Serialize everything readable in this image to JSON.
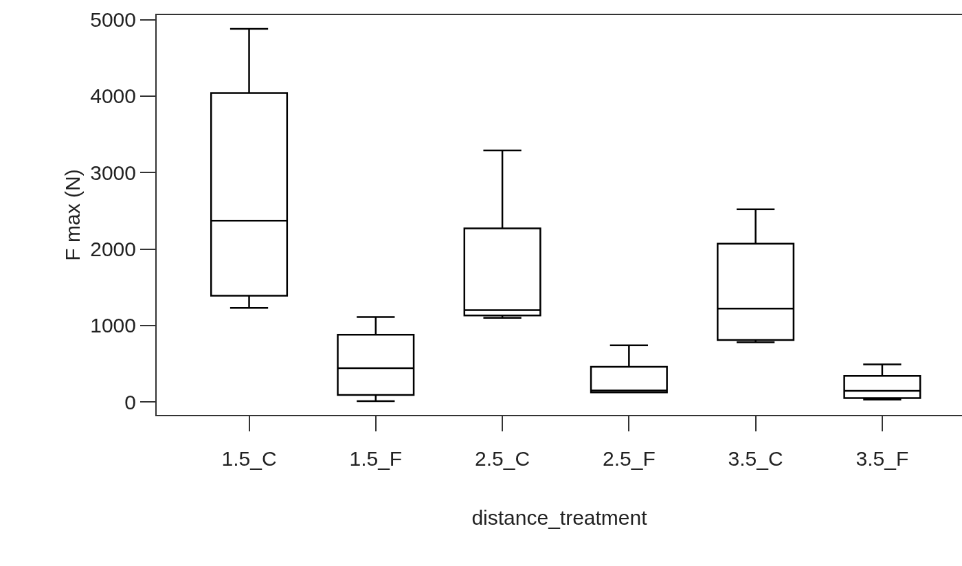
{
  "chart_data": {
    "type": "box",
    "xlabel": "distance_treatment",
    "ylabel": "F max (N)",
    "categories": [
      "1.5_C",
      "1.5_F",
      "2.5_C",
      "2.5_F",
      "3.5_C",
      "3.5_F"
    ],
    "boxes": [
      {
        "low": 1230,
        "q1": 1390,
        "median": 2370,
        "q3": 4040,
        "high": 4880
      },
      {
        "low": 10,
        "q1": 90,
        "median": 440,
        "q3": 880,
        "high": 1110
      },
      {
        "low": 1100,
        "q1": 1130,
        "median": 1200,
        "q3": 2270,
        "high": 3290
      },
      {
        "low": 125,
        "q1": 125,
        "median": 150,
        "q3": 460,
        "high": 740
      },
      {
        "low": 780,
        "q1": 810,
        "median": 1220,
        "q3": 2070,
        "high": 2520
      },
      {
        "low": 30,
        "q1": 50,
        "median": 145,
        "q3": 340,
        "high": 490
      }
    ],
    "color": "#000000",
    "ylim": [
      -170,
      5060
    ],
    "yticks": [
      0,
      1000,
      2000,
      3000,
      4000,
      5000
    ],
    "grid": false
  }
}
